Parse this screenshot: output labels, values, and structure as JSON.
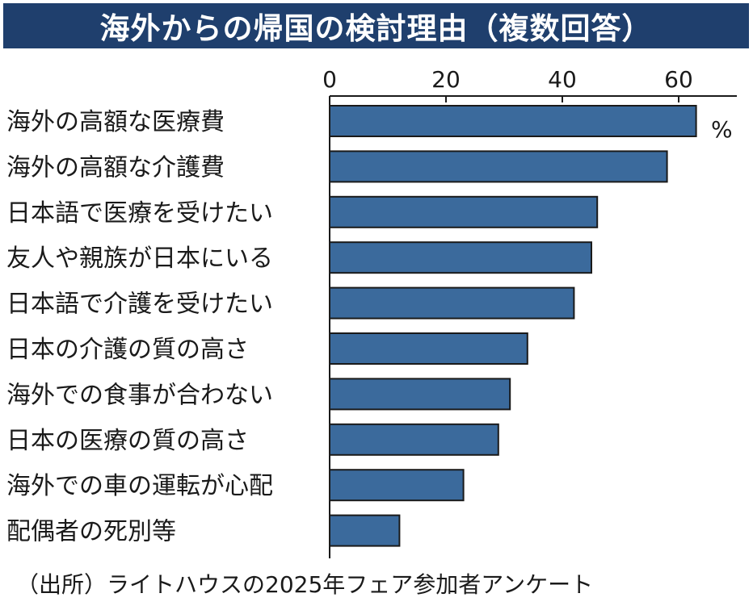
{
  "title": "海外からの帰国の検討理由（複数回答）",
  "source": "（出所）ライトハウスの2025年フェア参加者アンケート",
  "colors": {
    "title_background": "#1f3f6d",
    "bar_fill": "#3b6a9c",
    "bar_stroke": "#1a1a1a"
  },
  "chart_data": {
    "type": "bar",
    "orientation": "horizontal",
    "title": "海外からの帰国の検討理由（複数回答）",
    "unit": "%",
    "xlim": [
      0,
      70
    ],
    "ticks": [
      0,
      20,
      40,
      60
    ],
    "tick_labels": [
      "0",
      "20",
      "40",
      "60"
    ],
    "grid": false,
    "categories": [
      "海外の高額な医療費",
      "海外の高額な介護費",
      "日本語で医療を受けたい",
      "友人や親族が日本にいる",
      "日本語で介護を受けたい",
      "日本の介護の質の高さ",
      "海外での食事が合わない",
      "日本の医療の質の高さ",
      "海外での車の運転が心配",
      "配偶者の死別等"
    ],
    "values": [
      63,
      58,
      46,
      45,
      42,
      34,
      31,
      29,
      23,
      12
    ]
  }
}
